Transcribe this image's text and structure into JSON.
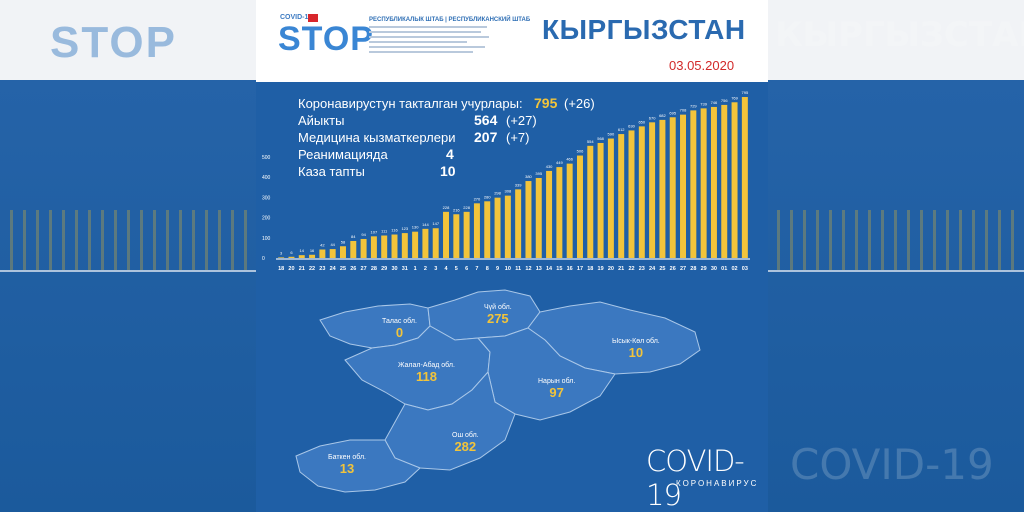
{
  "header": {
    "logo_small": "COVID-19",
    "logo_main": "STOP",
    "logo_headline": "РЕСПУБЛИКАЛЫК ШТАБ | РЕСПУБЛИКАНСКИЙ ШТАБ",
    "country": "КЫРГЫЗСТАН",
    "date": "03.05.2020"
  },
  "stats": [
    {
      "label": "Коронавирустун такталган учурлары:",
      "value": "795",
      "delta": "(+26)"
    },
    {
      "label": "Айыкты",
      "value": "564",
      "delta": "(+27)"
    },
    {
      "label": "Медицина кызматкерлери",
      "value": "207",
      "delta": "(+7)"
    },
    {
      "label": "Реанимацияда",
      "value": "4",
      "delta": ""
    },
    {
      "label": "Каза тапты",
      "value": "10",
      "delta": ""
    }
  ],
  "chart_data": {
    "type": "bar",
    "categories": [
      "18",
      "20",
      "21",
      "22",
      "23",
      "24",
      "25",
      "26",
      "27",
      "28",
      "29",
      "30",
      "31",
      "1",
      "2",
      "3",
      "4",
      "5",
      "6",
      "7",
      "8",
      "9",
      "10",
      "11",
      "12",
      "13",
      "14",
      "15",
      "16",
      "17",
      "18",
      "19",
      "20",
      "21",
      "22",
      "23",
      "24",
      "25",
      "26",
      "27",
      "28",
      "29",
      "30",
      "01",
      "02",
      "03"
    ],
    "values": [
      3,
      6,
      14,
      16,
      42,
      44,
      58,
      84,
      94,
      107,
      111,
      116,
      123,
      130,
      144,
      147,
      228,
      216,
      228,
      270,
      280,
      298,
      308,
      339,
      380,
      395,
      430,
      449,
      466,
      506,
      554,
      568,
      590,
      612,
      630,
      650,
      670,
      682,
      695,
      708,
      729,
      739,
      746,
      756,
      769,
      795
    ],
    "ylim": [
      0,
      800
    ],
    "yticks": [
      0,
      100,
      200,
      300,
      400,
      500
    ],
    "bar_color": "#f2c43b"
  },
  "regions": [
    {
      "name": "Талас обл.",
      "value": "0"
    },
    {
      "name": "Чүй обл.",
      "value": "275"
    },
    {
      "name": "Ысык-Көл обл.",
      "value": "10"
    },
    {
      "name": "Жалал-Абад обл.",
      "value": "118"
    },
    {
      "name": "Нарын обл.",
      "value": "97"
    },
    {
      "name": "Ош обл.",
      "value": "282"
    },
    {
      "name": "Баткен обл.",
      "value": "13"
    }
  ],
  "footer": {
    "title": "COVID-19",
    "subtitle": "КОРОНАВИРУС"
  },
  "colors": {
    "accent": "#f2c43b",
    "background": "#1f5fa6",
    "map_fill": "#3b78c0",
    "map_stroke": "#a9c7e8",
    "title": "#2a6ab0",
    "date": "#d22a2a"
  }
}
